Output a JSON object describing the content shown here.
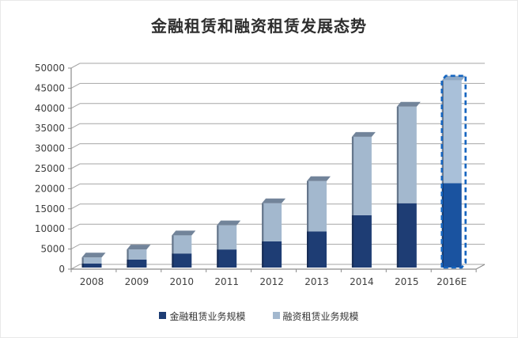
{
  "title": "金融租赁和融资租赁发展态势",
  "chart_data": {
    "type": "bar",
    "stacked": true,
    "title": "金融租赁和融资租赁发展态势",
    "categories": [
      "2008",
      "2009",
      "2010",
      "2011",
      "2012",
      "2013",
      "2014",
      "2015",
      "2016E"
    ],
    "series": [
      {
        "name": "金融租赁业务规模",
        "color": "#1e3d74",
        "values": [
          1000,
          2000,
          3500,
          4500,
          6500,
          9000,
          13000,
          16000,
          21000
        ]
      },
      {
        "name": "融资租赁业务规模",
        "color": "#a3b8ce",
        "values": [
          1500,
          2500,
          4500,
          6000,
          9500,
          12500,
          19500,
          24000,
          25500
        ]
      }
    ],
    "totals": [
      2500,
      4500,
      8000,
      10500,
      16000,
      21500,
      32500,
      40000,
      46500
    ],
    "ylim": [
      0,
      50000
    ],
    "ytick_step": 5000,
    "ytick_labels": [
      "0",
      "5000",
      "10000",
      "15000",
      "20000",
      "25000",
      "30000",
      "35000",
      "40000",
      "45000",
      "50000"
    ],
    "grid": true,
    "style": "3d-column",
    "legend_position": "bottom",
    "highlight": {
      "category": "2016E",
      "style": "dashed-outline",
      "color": "#1565c0"
    },
    "highlight_series_colors": [
      "#1a53a0",
      "#a9c0d9"
    ],
    "highlight_top_face_color": "#8fa9c6",
    "top_face_color": "#72849a",
    "bar_edge_color": "rgba(15,25,45,0.42)",
    "axis_color": "#8c8c8c",
    "grid_color": "#a6a6a6",
    "tick_label_color": "#3f3f3f"
  }
}
